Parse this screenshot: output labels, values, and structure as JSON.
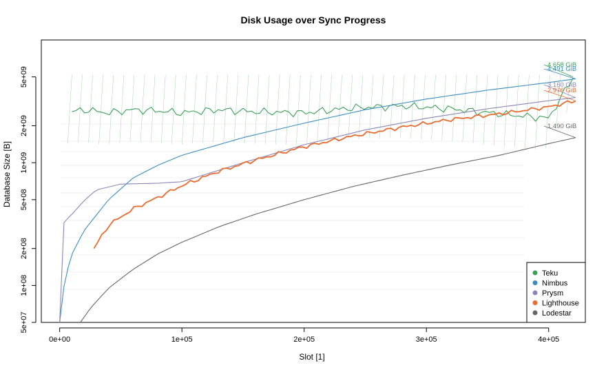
{
  "chart_data": {
    "type": "line",
    "title": "Disk Usage over Sync Progress",
    "xlabel": "Slot [1]",
    "ylabel": "Database Size [B]",
    "y_scale": "log",
    "xlim": [
      -15000,
      430000
    ],
    "ylim": [
      50000000,
      10000000000
    ],
    "x_ticks": [
      0,
      100000,
      200000,
      300000,
      400000
    ],
    "x_tick_labels": [
      "0e+00",
      "1e+05",
      "2e+05",
      "3e+05",
      "4e+05"
    ],
    "y_ticks": [
      50000000,
      100000000,
      200000000,
      500000000,
      1000000000,
      2000000000,
      5000000000
    ],
    "y_tick_labels": [
      "5e+07",
      "1e+08",
      "2e+08",
      "5e+08",
      "1e+09",
      "2e+09",
      "5e+09"
    ],
    "grid": false,
    "legend_position": "bottom-right",
    "series": [
      {
        "name": "Teku",
        "color": "#3a9f57",
        "end_label": "4.658 GiB",
        "x": [
          10000,
          20000,
          40000,
          60000,
          80000,
          100000,
          130000,
          160000,
          200000,
          240000,
          280000,
          320000,
          360000,
          400000,
          420000
        ],
        "y": [
          2600000000,
          2700000000,
          2550000000,
          2700000000,
          2650000000,
          2550000000,
          2700000000,
          2600000000,
          2550000000,
          2800000000,
          2900000000,
          2750000000,
          2500000000,
          2300000000,
          5000000000
        ]
      },
      {
        "name": "Nimbus",
        "color": "#3b8cc0",
        "end_label": "4.491 GiB",
        "x": [
          0,
          2000,
          5000,
          10000,
          20000,
          40000,
          60000,
          80000,
          100000,
          150000,
          200000,
          250000,
          300000,
          350000,
          400000,
          422000
        ],
        "y": [
          50000000,
          80000000,
          120000000,
          180000000,
          280000000,
          500000000,
          750000000,
          950000000,
          1150000000,
          1600000000,
          2100000000,
          2700000000,
          3300000000,
          3900000000,
          4500000000,
          4822000000
        ]
      },
      {
        "name": "Prysm",
        "color": "#8a85b8",
        "end_label": "3.160 GiB",
        "x": [
          0,
          1000,
          5000,
          10000,
          20000,
          30000,
          50000,
          80000,
          100000,
          150000,
          200000,
          250000,
          300000,
          350000,
          400000,
          422000
        ],
        "y": [
          50000000,
          300000000,
          340000000,
          380000000,
          490000000,
          600000000,
          670000000,
          680000000,
          700000000,
          1000000000,
          1400000000,
          1850000000,
          2300000000,
          2750000000,
          3200000000,
          3393000000
        ]
      },
      {
        "name": "Lighthouse",
        "color": "#e86b2f",
        "end_label": "2.976 GiB",
        "x": [
          28000,
          40000,
          60000,
          80000,
          100000,
          130000,
          160000,
          200000,
          240000,
          280000,
          320000,
          360000,
          400000,
          422000
        ],
        "y": [
          200000000,
          310000000,
          420000000,
          520000000,
          650000000,
          850000000,
          1050000000,
          1350000000,
          1650000000,
          1950000000,
          2250000000,
          2500000000,
          2850000000,
          3195000000
        ]
      },
      {
        "name": "Lodestar",
        "color": "#666666",
        "end_label": "1.490 GiB",
        "x": [
          17000,
          25000,
          40000,
          60000,
          80000,
          100000,
          130000,
          160000,
          200000,
          240000,
          280000,
          320000,
          360000,
          400000,
          422000
        ],
        "y": [
          50000000,
          65000000,
          95000000,
          135000000,
          180000000,
          225000000,
          300000000,
          380000000,
          500000000,
          640000000,
          790000000,
          960000000,
          1150000000,
          1430000000,
          1600000000
        ]
      }
    ]
  }
}
